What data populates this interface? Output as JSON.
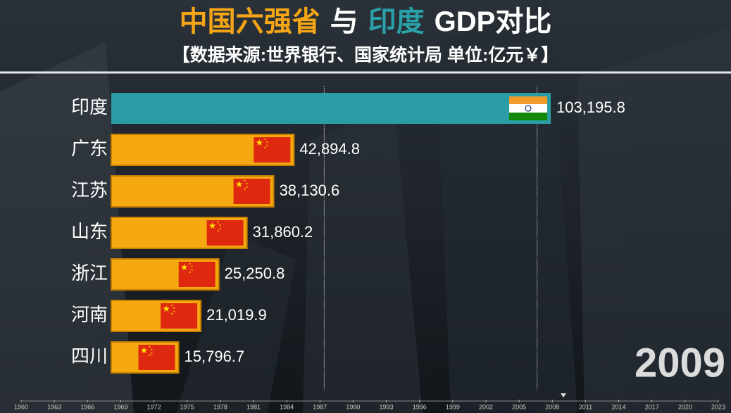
{
  "title_parts": [
    {
      "text": "中国六强省",
      "color": "#f5a515"
    },
    {
      "text": "与",
      "color": "#ffffff"
    },
    {
      "text": "印度",
      "color": "#2aa0a8"
    },
    {
      "text": "GDP对比",
      "color": "#ffffff"
    }
  ],
  "subtitle": "【数据来源:世界银行、国家统计局 单位:亿元￥】",
  "year": 2009,
  "chart_data": {
    "type": "bar",
    "categories": [
      "印度",
      "广东",
      "江苏",
      "山东",
      "浙江",
      "河南",
      "四川"
    ],
    "values": [
      103195.8,
      42894.8,
      38130.6,
      31860.2,
      25250.8,
      21019.9,
      15796.7
    ],
    "value_labels": [
      "103,195.8",
      "42,894.8",
      "38,130.6",
      "31,860.2",
      "25,250.8",
      "21,019.9",
      "15,796.7"
    ],
    "colors": [
      "#2a9da5",
      "#f5a80f",
      "#f5a80f",
      "#f5a80f",
      "#f5a80f",
      "#f5a80f",
      "#f5a80f"
    ],
    "flags": [
      "IN",
      "CN",
      "CN",
      "CN",
      "CN",
      "CN",
      "CN"
    ],
    "xlim": [
      0,
      103195.8
    ],
    "xgrid": [
      50000,
      100000
    ]
  },
  "timeline": {
    "xlim": [
      1960,
      2023
    ],
    "xticks": [
      1960,
      1963,
      1966,
      1969,
      1972,
      1975,
      1978,
      1981,
      1984,
      1987,
      1990,
      1993,
      1996,
      1999,
      2002,
      2005,
      2008,
      2011,
      2014,
      2017,
      2020,
      2023
    ]
  }
}
